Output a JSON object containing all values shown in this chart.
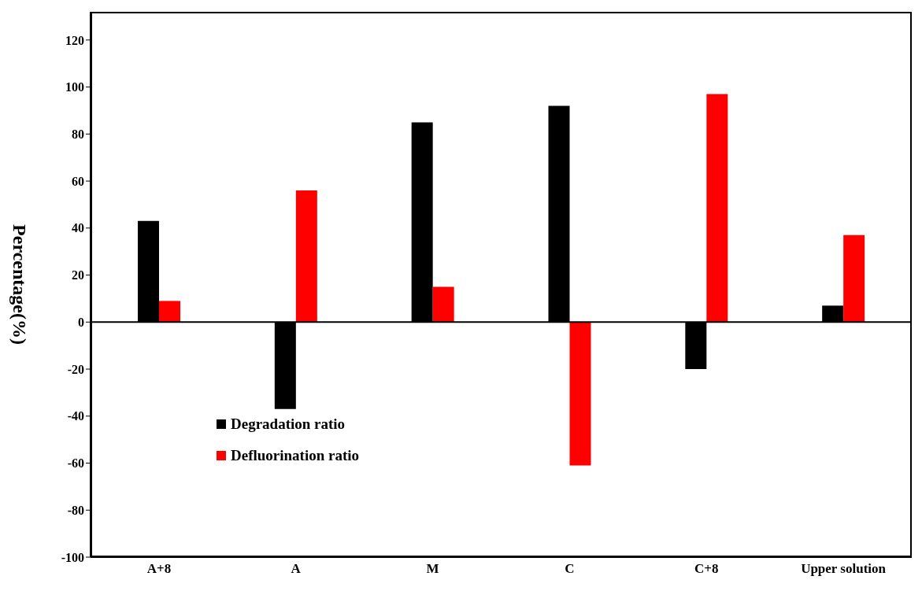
{
  "chart_data": {
    "type": "bar",
    "ylabel": "Percentage(%)",
    "categories": [
      "A+8",
      "A",
      "M",
      "C",
      "C+8",
      "Upper solution"
    ],
    "series": [
      {
        "name": "Degradation ratio",
        "color": "#000000",
        "values": [
          43,
          -37,
          85,
          92,
          -20,
          7
        ]
      },
      {
        "name": "Defluorination ratio",
        "color": "#ff0000",
        "values": [
          9,
          56,
          15,
          -61,
          97,
          37
        ]
      }
    ],
    "ylim": [
      -100,
      132
    ],
    "yticks": [
      -100,
      -80,
      -60,
      -40,
      -20,
      0,
      20,
      40,
      60,
      80,
      100,
      120
    ],
    "grid": false,
    "ref_lines": [
      {
        "axis": "y",
        "value": 0
      }
    ],
    "legend": "bottom left"
  }
}
